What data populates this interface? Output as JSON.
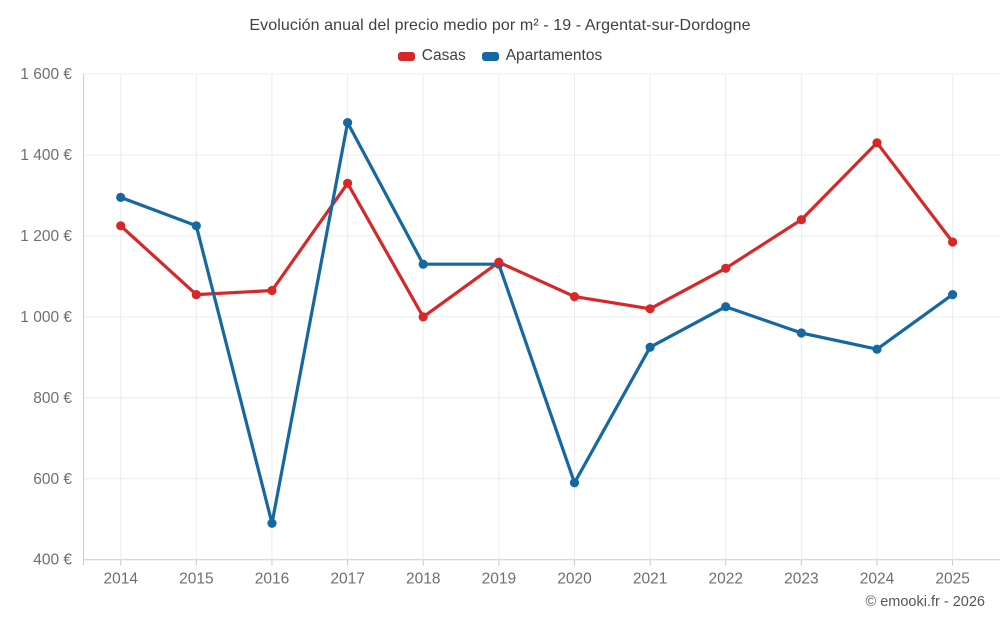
{
  "header": {
    "title": "Evolución anual del precio medio por m² - 19 - Argentat-sur-Dordogne"
  },
  "footer": {
    "credit": "© emooki.fr - 2026"
  },
  "chart_data": {
    "type": "line",
    "title": "Evolución anual del precio medio por m² - 19 - Argentat-sur-Dordogne",
    "categories": [
      "2014",
      "2015",
      "2016",
      "2017",
      "2018",
      "2019",
      "2020",
      "2021",
      "2022",
      "2023",
      "2024",
      "2025"
    ],
    "series": [
      {
        "name": "Casas",
        "color": "#d62828",
        "values": [
          1225,
          1055,
          1065,
          1330,
          1000,
          1135,
          1050,
          1020,
          1120,
          1240,
          1430,
          1185
        ]
      },
      {
        "name": "Apartamentos",
        "color": "#1668a2",
        "values": [
          1295,
          1225,
          490,
          1480,
          1130,
          1130,
          590,
          925,
          1025,
          960,
          920,
          1055
        ]
      }
    ],
    "ylim": [
      400,
      1600
    ],
    "y_ticks": [
      {
        "value": 1600,
        "label": "1 600 €"
      },
      {
        "value": 1400,
        "label": "1 400 €"
      },
      {
        "value": 1200,
        "label": "1 200 €"
      },
      {
        "value": 1000,
        "label": "1 000 €"
      },
      {
        "value": 800,
        "label": "800 €"
      },
      {
        "value": 600,
        "label": "600 €"
      },
      {
        "value": 400,
        "label": "400 €"
      }
    ],
    "grid": true,
    "legend_position": "top",
    "colors": {
      "grid_line": "#ececec",
      "axis_line": "#cccccc",
      "axis_text": "#6f6f6f"
    }
  }
}
